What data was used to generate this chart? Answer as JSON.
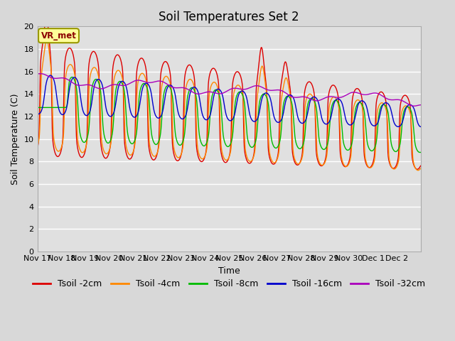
{
  "title": "Soil Temperatures Set 2",
  "xlabel": "Time",
  "ylabel": "Soil Temperature (C)",
  "ylim": [
    0,
    20
  ],
  "yticks": [
    0,
    2,
    4,
    6,
    8,
    10,
    12,
    14,
    16,
    18,
    20
  ],
  "xlim_start": 0,
  "xlim_end": 16,
  "xtick_labels": [
    "Nov 17",
    "Nov 18",
    "Nov 19",
    "Nov 20",
    "Nov 21",
    "Nov 22",
    "Nov 23",
    "Nov 24",
    "Nov 25",
    "Nov 26",
    "Nov 27",
    "Nov 28",
    "Nov 29",
    "Nov 30",
    "Dec 1",
    "Dec 2"
  ],
  "background_color": "#d8d8d8",
  "plot_bg_color": "#e0e0e0",
  "series": [
    {
      "label": "Tsoil -2cm",
      "color": "#dd0000"
    },
    {
      "label": "Tsoil -4cm",
      "color": "#ff8800"
    },
    {
      "label": "Tsoil -8cm",
      "color": "#00bb00"
    },
    {
      "label": "Tsoil -16cm",
      "color": "#0000cc"
    },
    {
      "label": "Tsoil -32cm",
      "color": "#aa00bb"
    }
  ],
  "annotation_text": "VR_met",
  "title_fontsize": 12,
  "label_fontsize": 9,
  "tick_fontsize": 8,
  "legend_fontsize": 9
}
